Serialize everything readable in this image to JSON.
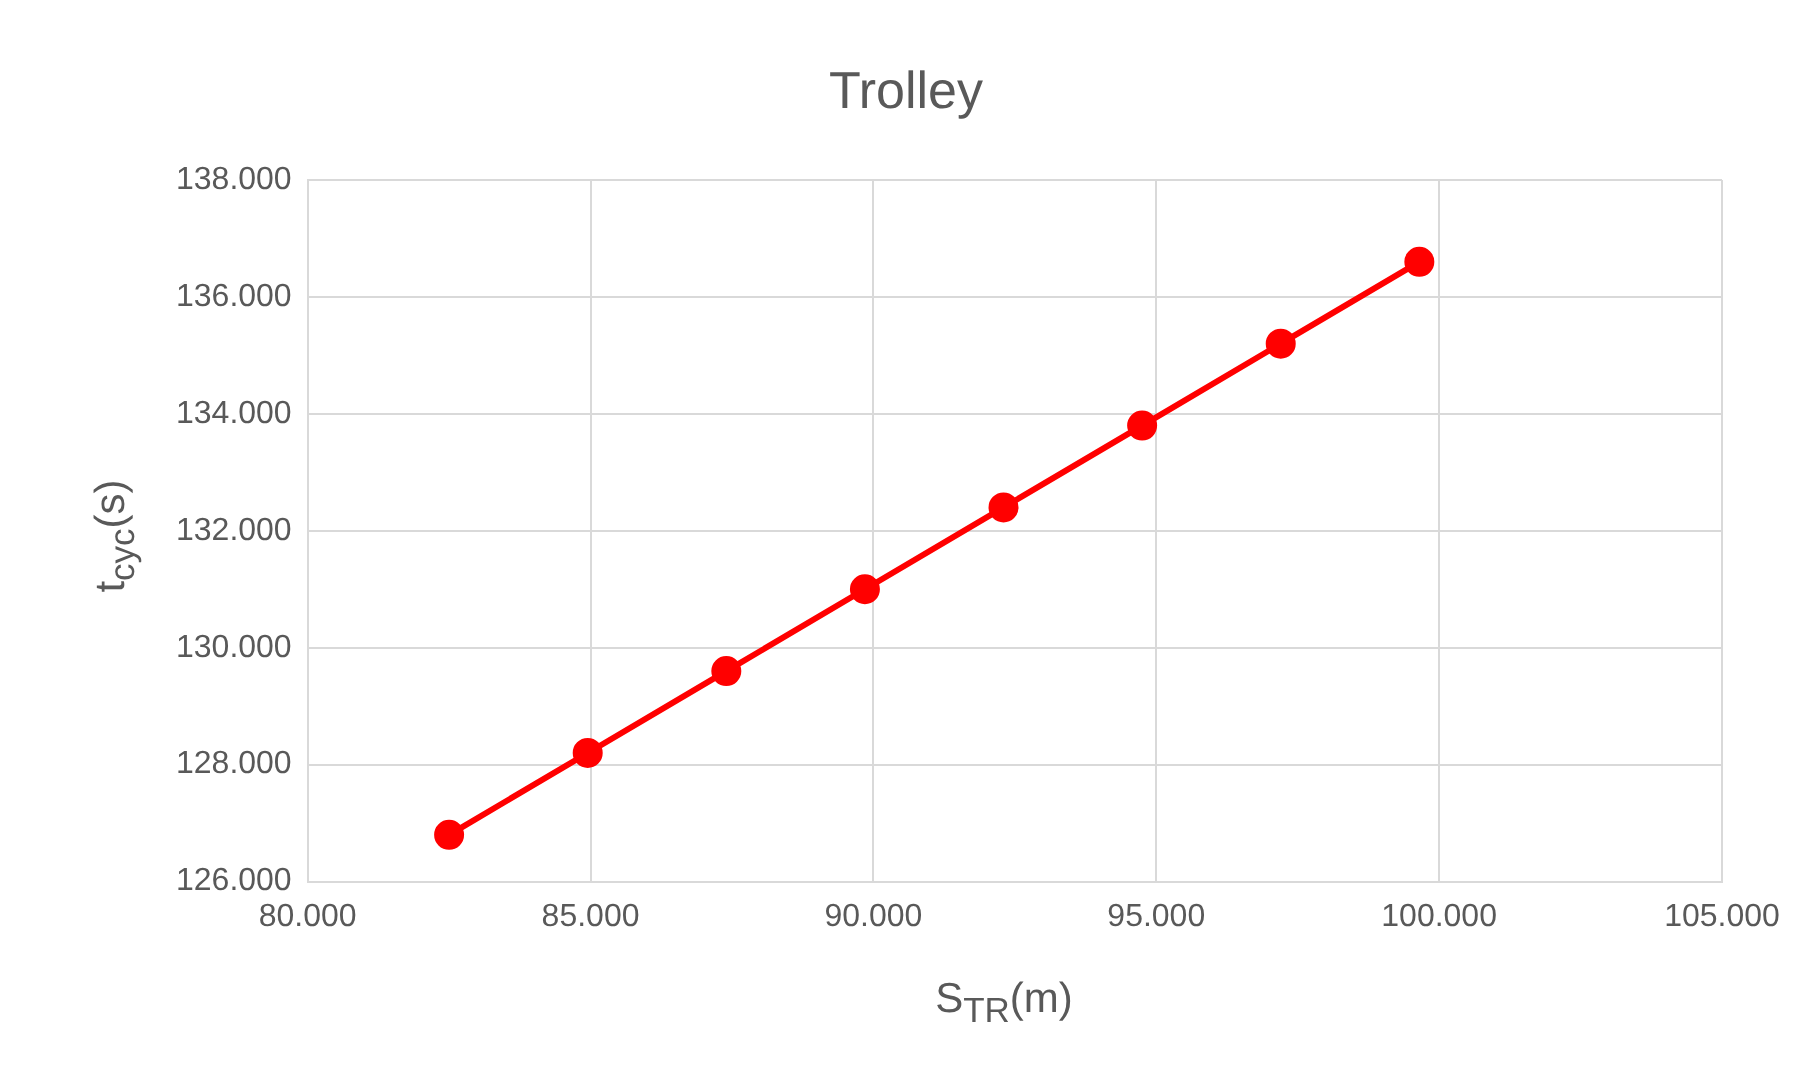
{
  "chart_data": {
    "type": "line",
    "title": "Trolley",
    "xlabel": "S$_{TR}$(m)",
    "ylabel": "t$_{cyc}$(s)",
    "x": [
      82.5,
      84.95,
      87.4,
      89.85,
      92.3,
      94.75,
      97.2,
      99.65
    ],
    "series": [
      {
        "color": "#ff0000",
        "values": [
          126.8,
          128.2,
          129.6,
          131.0,
          132.4,
          133.8,
          135.2,
          136.6
        ]
      }
    ],
    "xlim": [
      80,
      105
    ],
    "xticks": [
      {
        "value": 80,
        "label": "80.000"
      },
      {
        "value": 85,
        "label": "85.000"
      },
      {
        "value": 90,
        "label": "90.000"
      },
      {
        "value": 95,
        "label": "95.000"
      },
      {
        "value": 100,
        "label": "100.000"
      },
      {
        "value": 105,
        "label": "105.000"
      }
    ],
    "ylim": [
      126,
      138
    ],
    "yticks": [
      {
        "value": 126,
        "label": "126.000"
      },
      {
        "value": 128,
        "label": "128.000"
      },
      {
        "value": 130,
        "label": "130.000"
      },
      {
        "value": 132,
        "label": "132.000"
      },
      {
        "value": 134,
        "label": "134.000"
      },
      {
        "value": 136,
        "label": "136.000"
      },
      {
        "value": 138,
        "label": "138.000"
      }
    ],
    "grid": true,
    "legend": false,
    "marker": "circle",
    "line_style": "solid"
  }
}
